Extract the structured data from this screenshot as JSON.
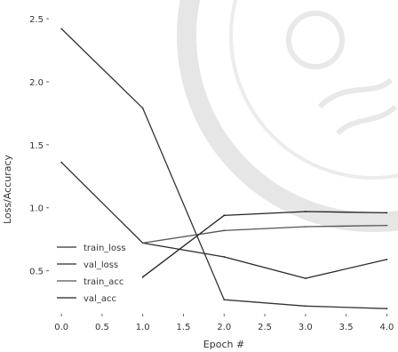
{
  "chart_data": {
    "type": "line",
    "xlabel": "Epoch #",
    "ylabel": "Loss/Accuracy",
    "x": [
      0.0,
      1.0,
      2.0,
      3.0,
      4.0
    ],
    "xlim": [
      -0.1,
      4.05
    ],
    "ylim": [
      0.18,
      2.55
    ],
    "xticks": [
      0.0,
      0.5,
      1.0,
      1.5,
      2.0,
      2.5,
      3.0,
      3.5,
      4.0
    ],
    "xtick_labels": [
      "0.0",
      "0.5",
      "1.0",
      "1.5",
      "2.0",
      "2.5",
      "3.0",
      "3.5",
      "4.0"
    ],
    "yticks": [
      0.5,
      1.0,
      1.5,
      2.0,
      2.5
    ],
    "ytick_labels": [
      "0.5",
      "1.0",
      "1.5",
      "2.0",
      "2.5"
    ],
    "grid": false,
    "legend_position": "lower-left",
    "series": [
      {
        "name": "train_loss",
        "values": [
          2.42,
          1.79,
          0.27,
          0.22,
          0.2
        ],
        "color": "#333333"
      },
      {
        "name": "val_loss",
        "values": [
          1.36,
          0.72,
          0.61,
          0.44,
          0.59
        ],
        "color": "#2a2a2a"
      },
      {
        "name": "train_acc",
        "values": [
          null,
          0.72,
          0.82,
          0.85,
          0.86
        ],
        "color": "#555555"
      },
      {
        "name": "val_acc",
        "values": [
          null,
          0.45,
          0.94,
          0.97,
          0.96
        ],
        "color": "#222222"
      }
    ]
  }
}
